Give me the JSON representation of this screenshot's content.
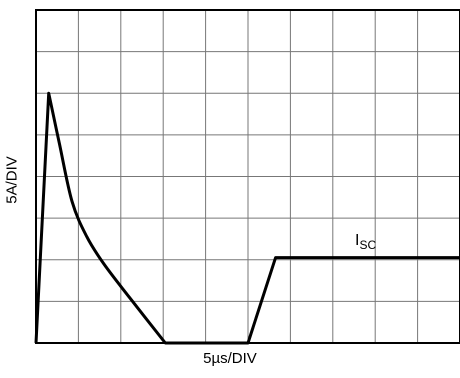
{
  "chart_data": {
    "type": "line",
    "title": "",
    "xlabel": "5µs/DIV",
    "ylabel": "5A/DIV",
    "grid": true,
    "divisions": {
      "x": 10,
      "y": 8
    },
    "xlim": [
      0,
      10
    ],
    "ylim": [
      0,
      8
    ],
    "series": [
      {
        "name": "ISC",
        "x": [
          0,
          0.3,
          0.55,
          0.85,
          1.2,
          1.6,
          2.2,
          3.05,
          5.0,
          5.65,
          10.0
        ],
        "y": [
          0,
          6.0,
          4.8,
          3.4,
          2.55,
          1.9,
          1.1,
          0,
          0,
          2.05,
          2.05
        ]
      }
    ],
    "trace_label": {
      "main": "I",
      "sub": "SC"
    }
  }
}
